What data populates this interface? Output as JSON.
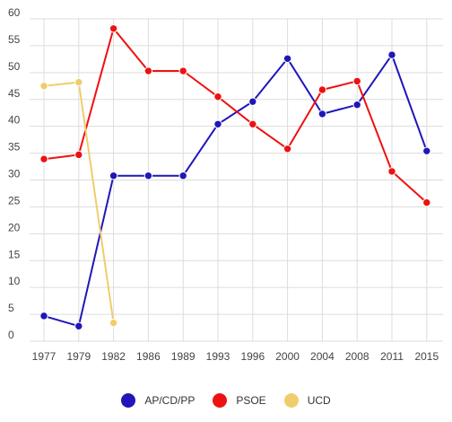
{
  "chart_data": {
    "type": "line",
    "categories": [
      "1977",
      "1979",
      "1982",
      "1986",
      "1989",
      "1993",
      "1996",
      "2000",
      "2004",
      "2008",
      "2011",
      "2015"
    ],
    "series": [
      {
        "name": "AP/CD/PP",
        "color": "#1f17b8",
        "values": [
          4.7,
          2.8,
          30.8,
          30.8,
          30.8,
          40.4,
          44.6,
          52.6,
          42.3,
          44.0,
          53.3,
          35.4
        ]
      },
      {
        "name": "PSOE",
        "color": "#ee1111",
        "values": [
          33.9,
          34.7,
          58.2,
          50.3,
          50.3,
          45.5,
          40.4,
          35.8,
          46.8,
          48.4,
          31.6,
          25.8
        ]
      },
      {
        "name": "UCD",
        "color": "#f0cd6b",
        "values": [
          47.5,
          48.2,
          3.4,
          null,
          null,
          null,
          null,
          null,
          null,
          null,
          null,
          null
        ]
      }
    ],
    "yticks": [
      "0",
      "5",
      "10",
      "15",
      "20",
      "25",
      "30",
      "35",
      "40",
      "45",
      "50",
      "55",
      "60"
    ],
    "ylim": [
      0,
      60
    ],
    "grid": true,
    "legend_position": "bottom"
  },
  "legend": {
    "items": [
      {
        "label": "AP/CD/PP",
        "color": "#1f17b8"
      },
      {
        "label": "PSOE",
        "color": "#ee1111"
      },
      {
        "label": "UCD",
        "color": "#f0cd6b"
      }
    ]
  }
}
